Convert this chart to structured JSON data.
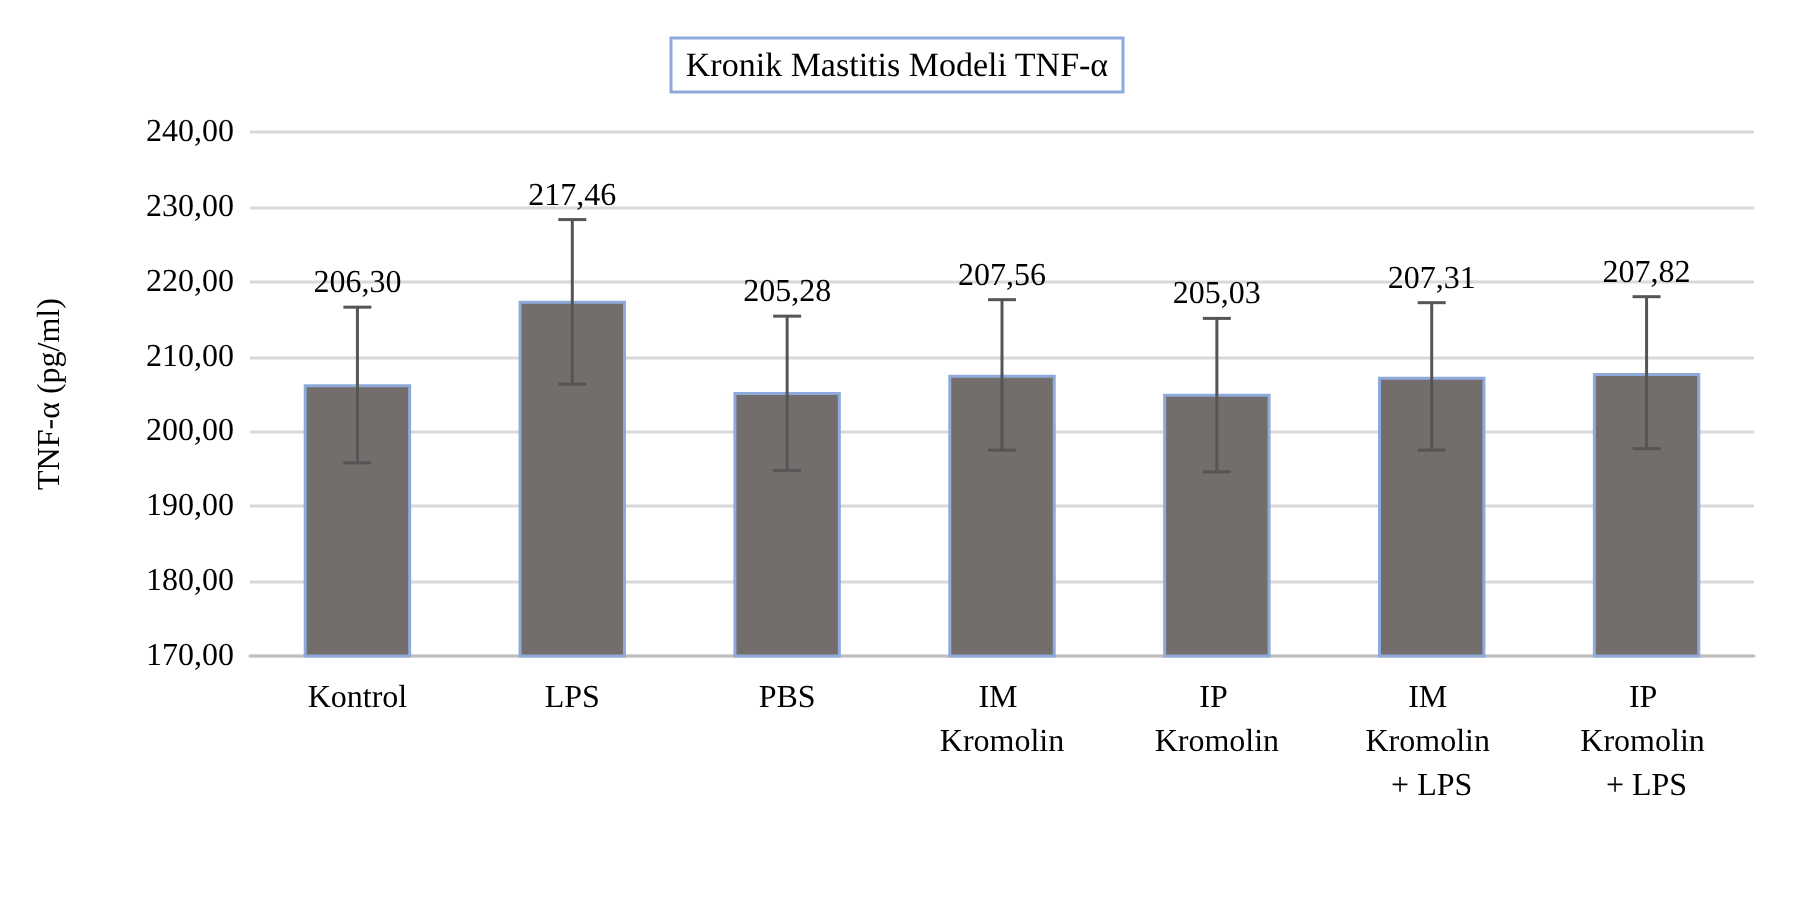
{
  "chart_data": {
    "type": "bar",
    "title": "Kronik Mastitis Modeli TNF-α",
    "ylabel": "TNF-α (pg/ml)",
    "categories": [
      "Kontrol",
      "LPS",
      "PBS",
      "IM Kromolin",
      "IP Kromolin",
      "IM Kromolin + LPS",
      "IP Kromolin + LPS"
    ],
    "values": [
      206.3,
      217.46,
      205.28,
      207.56,
      205.03,
      207.31,
      207.82
    ],
    "value_labels": [
      "206,30",
      "217,46",
      "205,28",
      "207,56",
      "205,03",
      "207,31",
      "207,82"
    ],
    "errors": [
      [
        195.8,
        216.6
      ],
      [
        206.3,
        228.3
      ],
      [
        194.8,
        215.4
      ],
      [
        197.5,
        217.6
      ],
      [
        194.6,
        215.1
      ],
      [
        197.5,
        217.2
      ],
      [
        197.7,
        218.0
      ]
    ],
    "color": "#736e6c",
    "ylim": [
      170,
      240
    ],
    "yticks": [
      {
        "value": 170,
        "label": "170,00"
      },
      {
        "value": 180,
        "label": "180,00"
      },
      {
        "value": 190,
        "label": "190,00"
      },
      {
        "value": 200,
        "label": "200,00"
      },
      {
        "value": 210,
        "label": "210,00"
      },
      {
        "value": 220,
        "label": "220,00"
      },
      {
        "value": 230,
        "label": "230,00"
      },
      {
        "value": 240,
        "label": "240,00"
      }
    ],
    "grid": "y"
  }
}
